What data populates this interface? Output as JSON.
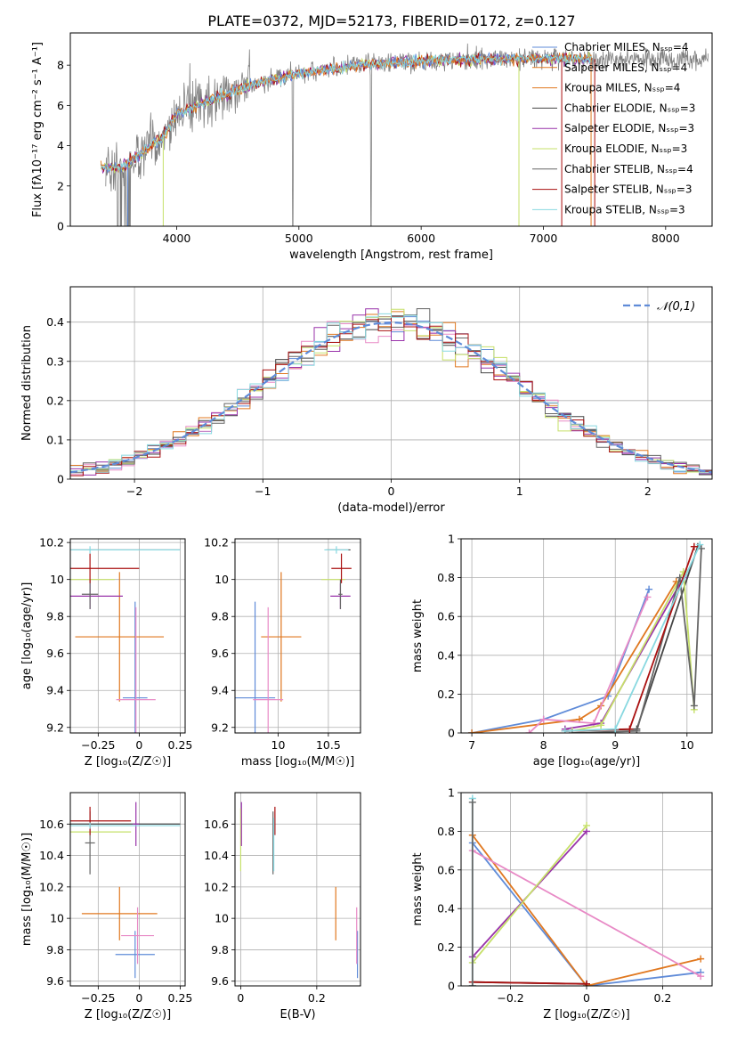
{
  "figure_title": "PLATE=0372, MJD=52173, FIBERID=0172, z=0.127",
  "colors": {
    "chabrier_miles": "#5f8bd8",
    "salpeter_miles": "#e07820",
    "kroupa_miles": "#e07820",
    "chabrier_elodie": "#444444",
    "salpeter_elodie": "#9933aa",
    "kroupa_elodie": "#c6e06a",
    "chabrier_stelib": "#666666",
    "salpeter_stelib": "#aa1111",
    "kroupa_stelib": "#88d8e0",
    "pink": "#e88ac6",
    "green": "#7ac943",
    "gaussian": "#5f8bd8"
  },
  "chart_data": [
    {
      "id": "spectrum",
      "type": "line",
      "xlabel": "wavelength [Angstrom, rest frame]",
      "ylabel": "Flux [f_λ 10^-17 erg cm^-2 s^-1 A^-1]",
      "xlim": [
        3130,
        8380
      ],
      "ylim": [
        0,
        9.6
      ],
      "xticks": [
        4000,
        5000,
        6000,
        7000,
        8000
      ],
      "yticks": [
        0,
        2,
        4,
        6,
        8
      ],
      "legend_position": "right",
      "legend": [
        "Chabrier MILES, N_SSP=4",
        "Salpeter MILES, N_SSP=4",
        "Kroupa MILES, N_SSP=4",
        "Chabrier ELODIE, N_SSP=3",
        "Salpeter ELODIE, N_SSP=3",
        "Kroupa ELODIE, N_SSP=3",
        "Chabrier STELIB, N_SSP=4",
        "Salpeter STELIB, N_SSP=3",
        "Kroupa STELIB, N_SSP=3"
      ],
      "continuum": {
        "x": [
          3380,
          3550,
          3700,
          3900,
          4000,
          4300,
          4600,
          5000,
          5500,
          6000,
          6500,
          7000,
          7400
        ],
        "y": [
          2.9,
          2.9,
          3.6,
          4.5,
          5.6,
          6.3,
          7.0,
          7.6,
          8.0,
          8.2,
          8.3,
          8.35,
          8.3
        ]
      },
      "model_x_range": [
        3380,
        7400
      ],
      "data_x_range": [
        3420,
        8350
      ]
    },
    {
      "id": "residuals",
      "type": "histogram",
      "xlabel": "(data-model)/error",
      "ylabel": "Normed distribution",
      "xlim": [
        -2.5,
        2.5
      ],
      "ylim": [
        0,
        0.49
      ],
      "xticks": [
        -2,
        -1,
        0,
        1,
        2
      ],
      "yticks": [
        0.0,
        0.1,
        0.2,
        0.3,
        0.4
      ],
      "legend_position": "top-right",
      "legend": [
        "N(0,1)"
      ],
      "bin_width": 0.1
    },
    {
      "id": "age_vs_Z",
      "type": "errorbar",
      "xlabel": "Z [log10(Z/Z☉)]",
      "ylabel": "age  [log10(age/yr)]",
      "xlim": [
        -0.42,
        0.28
      ],
      "ylim": [
        9.17,
        10.22
      ],
      "xticks": [
        -0.25,
        0.0,
        0.25
      ],
      "yticks": [
        9.2,
        9.4,
        9.6,
        9.8,
        10.0,
        10.2
      ],
      "points": [
        {
          "x": -0.025,
          "xerr": 0.075,
          "y": 9.36,
          "yerr": 0.52,
          "color": "chabrier_miles"
        },
        {
          "x": -0.12,
          "xerr": 0.27,
          "y": 9.69,
          "yerr": 0.35,
          "color": "salpeter_miles"
        },
        {
          "x": -0.02,
          "xerr": 0.12,
          "y": 9.35,
          "yerr": 0.5,
          "color": "pink"
        },
        {
          "x": -0.3,
          "xerr": 0.55,
          "y": 10.16,
          "yerr": 0.0,
          "color": "chabrier_elodie"
        },
        {
          "x": -0.3,
          "xerr": 0.2,
          "y": 9.91,
          "yerr": 0.07,
          "color": "salpeter_elodie"
        },
        {
          "x": -0.3,
          "xerr": 0.15,
          "y": 10.0,
          "yerr": 0.0,
          "color": "kroupa_elodie"
        },
        {
          "x": -0.3,
          "xerr": 0.05,
          "y": 9.92,
          "yerr": 0.08,
          "color": "chabrier_stelib"
        },
        {
          "x": -0.3,
          "xerr": 0.3,
          "y": 10.06,
          "yerr": 0.08,
          "color": "salpeter_stelib"
        },
        {
          "x": -0.3,
          "xerr": 0.55,
          "y": 10.16,
          "yerr": 0.02,
          "color": "kroupa_stelib"
        }
      ]
    },
    {
      "id": "age_vs_mass",
      "type": "errorbar",
      "xlabel": "mass [log10(M/M☉)]",
      "ylabel": "",
      "xlim": [
        9.57,
        10.82
      ],
      "ylim": [
        9.17,
        10.22
      ],
      "xticks": [
        10.0,
        10.5
      ],
      "yticks": [
        9.2,
        9.4,
        9.6,
        9.8,
        10.0,
        10.2
      ],
      "points": [
        {
          "x": 9.77,
          "xerr": 0.2,
          "y": 9.36,
          "yerr": 0.52,
          "color": "chabrier_miles"
        },
        {
          "x": 10.03,
          "xerr": 0.2,
          "y": 9.69,
          "yerr": 0.35,
          "color": "salpeter_miles"
        },
        {
          "x": 9.9,
          "xerr": 0.15,
          "y": 9.35,
          "yerr": 0.5,
          "color": "pink"
        },
        {
          "x": 10.6,
          "xerr": 0.12,
          "y": 10.16,
          "yerr": 0.0,
          "color": "chabrier_elodie"
        },
        {
          "x": 10.62,
          "xerr": 0.1,
          "y": 9.91,
          "yerr": 0.07,
          "color": "salpeter_elodie"
        },
        {
          "x": 10.55,
          "xerr": 0.12,
          "y": 10.0,
          "yerr": 0.0,
          "color": "kroupa_elodie"
        },
        {
          "x": 10.62,
          "xerr": 0.02,
          "y": 9.92,
          "yerr": 0.08,
          "color": "chabrier_stelib"
        },
        {
          "x": 10.63,
          "xerr": 0.1,
          "y": 10.06,
          "yerr": 0.08,
          "color": "salpeter_stelib"
        },
        {
          "x": 10.58,
          "xerr": 0.12,
          "y": 10.16,
          "yerr": 0.02,
          "color": "kroupa_stelib"
        }
      ]
    },
    {
      "id": "massweight_vs_age",
      "type": "line",
      "xlabel": "age  [log10(age/yr)]",
      "ylabel": "mass weight",
      "xlim": [
        6.85,
        10.35
      ],
      "ylim": [
        0,
        1.0
      ],
      "xticks": [
        7,
        8,
        9,
        10
      ],
      "yticks": [
        0.0,
        0.2,
        0.4,
        0.6,
        0.8,
        1.0
      ],
      "series": [
        {
          "color": "chabrier_miles",
          "x": [
            7.0,
            8.0,
            8.9,
            9.47
          ],
          "y": [
            0.0,
            0.07,
            0.19,
            0.74
          ]
        },
        {
          "color": "salpeter_miles",
          "x": [
            7.0,
            8.5,
            8.8,
            9.85
          ],
          "y": [
            0.0,
            0.07,
            0.14,
            0.78
          ]
        },
        {
          "color": "pink",
          "x": [
            7.8,
            8.0,
            8.7,
            9.45
          ],
          "y": [
            0.0,
            0.07,
            0.05,
            0.7
          ]
        },
        {
          "color": "chabrier_elodie",
          "x": [
            8.3,
            9.3,
            10.15
          ],
          "y": [
            0.01,
            0.02,
            0.96
          ]
        },
        {
          "color": "salpeter_elodie",
          "x": [
            8.3,
            8.8,
            9.95
          ],
          "y": [
            0.02,
            0.05,
            0.8
          ]
        },
        {
          "color": "kroupa_elodie",
          "x": [
            8.4,
            8.8,
            9.95,
            10.1
          ],
          "y": [
            0.01,
            0.04,
            0.83,
            0.12
          ]
        },
        {
          "color": "chabrier_stelib",
          "x": [
            8.4,
            9.3,
            9.9,
            10.1,
            10.2
          ],
          "y": [
            0.0,
            0.01,
            0.8,
            0.14,
            0.95
          ]
        },
        {
          "color": "salpeter_stelib",
          "x": [
            8.3,
            9.2,
            10.1
          ],
          "y": [
            0.01,
            0.02,
            0.96
          ]
        },
        {
          "color": "kroupa_stelib",
          "x": [
            8.3,
            9.0,
            10.18
          ],
          "y": [
            0.01,
            0.02,
            0.97
          ]
        }
      ]
    },
    {
      "id": "mass_vs_Z",
      "type": "errorbar",
      "xlabel": "Z [log10(Z/Z☉)]",
      "ylabel": "mass [log10(M/M☉)]",
      "xlim": [
        -0.42,
        0.28
      ],
      "ylim": [
        9.57,
        10.8
      ],
      "xticks": [
        -0.25,
        0.0,
        0.25
      ],
      "yticks": [
        9.6,
        9.8,
        10.0,
        10.2,
        10.4,
        10.6
      ],
      "points": [
        {
          "x": -0.025,
          "xerr": 0.12,
          "y": 9.77,
          "yerr": 0.15,
          "color": "chabrier_miles"
        },
        {
          "x": -0.12,
          "xerr": 0.23,
          "y": 10.03,
          "yerr": 0.17,
          "color": "salpeter_miles"
        },
        {
          "x": -0.01,
          "xerr": 0.1,
          "y": 9.89,
          "yerr": 0.18,
          "color": "pink"
        },
        {
          "x": -0.3,
          "xerr": 0.55,
          "y": 10.6,
          "yerr": 0.0,
          "color": "chabrier_elodie"
        },
        {
          "x": -0.02,
          "xerr": 0.02,
          "y": 10.6,
          "yerr": 0.14,
          "color": "salpeter_elodie"
        },
        {
          "x": -0.3,
          "xerr": 0.25,
          "y": 10.55,
          "yerr": 0.0,
          "color": "kroupa_elodie"
        },
        {
          "x": -0.3,
          "xerr": 0.03,
          "y": 10.48,
          "yerr": 0.2,
          "color": "chabrier_stelib"
        },
        {
          "x": -0.3,
          "xerr": 0.25,
          "y": 10.62,
          "yerr": 0.09,
          "color": "salpeter_stelib"
        },
        {
          "x": -0.3,
          "xerr": 0.55,
          "y": 10.59,
          "yerr": 0.02,
          "color": "kroupa_stelib"
        }
      ]
    },
    {
      "id": "mass_vs_EBV",
      "type": "errorbar",
      "xlabel": "E(B-V)",
      "ylabel": "",
      "xlim": [
        -0.015,
        0.315
      ],
      "ylim": [
        9.57,
        10.8
      ],
      "xticks": [
        0.0,
        0.2
      ],
      "yticks": [
        9.6,
        9.8,
        10.0,
        10.2,
        10.4,
        10.6
      ],
      "points": [
        {
          "x": 0.307,
          "xerr": 0.0,
          "y": 9.77,
          "yerr": 0.15,
          "color": "chabrier_miles"
        },
        {
          "x": 0.25,
          "xerr": 0.0,
          "y": 10.03,
          "yerr": 0.17,
          "color": "salpeter_miles"
        },
        {
          "x": 0.305,
          "xerr": 0.0,
          "y": 9.89,
          "yerr": 0.18,
          "color": "pink"
        },
        {
          "x": 0.0,
          "xerr": 0.0,
          "y": 10.5,
          "yerr": 0.2,
          "color": "kroupa_elodie"
        },
        {
          "x": 0.002,
          "xerr": 0.0,
          "y": 10.6,
          "yerr": 0.14,
          "color": "salpeter_elodie"
        },
        {
          "x": 0.085,
          "xerr": 0.0,
          "y": 10.48,
          "yerr": 0.2,
          "color": "chabrier_stelib"
        },
        {
          "x": 0.09,
          "xerr": 0.0,
          "y": 10.62,
          "yerr": 0.09,
          "color": "salpeter_stelib"
        },
        {
          "x": 0.087,
          "xerr": 0.0,
          "y": 10.47,
          "yerr": 0.17,
          "color": "kroupa_stelib"
        }
      ]
    },
    {
      "id": "massweight_vs_Z",
      "type": "line",
      "xlabel": "Z [log10(Z/Z☉)]",
      "ylabel": "mass weight",
      "xlim": [
        -0.33,
        0.33
      ],
      "ylim": [
        0,
        1.0
      ],
      "xticks": [
        -0.2,
        0.0,
        0.2
      ],
      "yticks": [
        0.0,
        0.2,
        0.4,
        0.6,
        0.8,
        1.0
      ],
      "series": [
        {
          "color": "chabrier_miles",
          "x": [
            -0.3,
            0.0,
            0.3
          ],
          "y": [
            0.74,
            0.0,
            0.07
          ]
        },
        {
          "color": "salpeter_miles",
          "x": [
            -0.3,
            0.0,
            0.3
          ],
          "y": [
            0.78,
            0.0,
            0.14
          ]
        },
        {
          "color": "pink",
          "x": [
            -0.3,
            0.3
          ],
          "y": [
            0.7,
            0.05
          ]
        },
        {
          "color": "salpeter_elodie",
          "x": [
            -0.3,
            0.0
          ],
          "y": [
            0.15,
            0.8
          ]
        },
        {
          "color": "kroupa_elodie",
          "x": [
            -0.3,
            0.0
          ],
          "y": [
            0.12,
            0.83
          ]
        },
        {
          "color": "chabrier_elodie",
          "x": [
            -0.3,
            0.0
          ],
          "y": [
            0.02,
            0.01
          ]
        },
        {
          "color": "salpeter_stelib",
          "x": [
            -0.3,
            0.0
          ],
          "y": [
            0.02,
            0.01
          ]
        },
        {
          "color": "kroupa_stelib",
          "x": [
            -0.3,
            -0.3
          ],
          "y": [
            0.0,
            0.97
          ]
        },
        {
          "color": "chabrier_stelib",
          "x": [
            -0.3,
            -0.3
          ],
          "y": [
            0.0,
            0.95
          ]
        }
      ]
    }
  ]
}
